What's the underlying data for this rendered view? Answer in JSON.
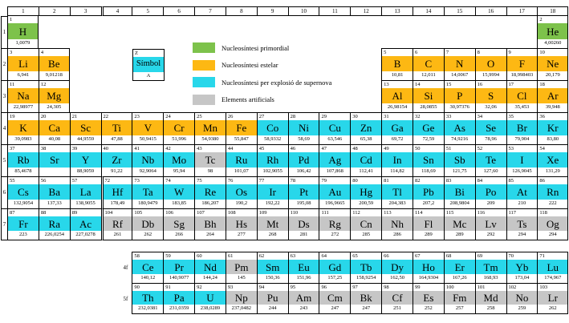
{
  "colors": {
    "primordial": "#7DC24B",
    "stellar": "#FDB813",
    "supernova": "#28D7EA",
    "artificial": "#C6C6C6"
  },
  "legend": {
    "items": [
      {
        "key": "primordial",
        "label": "Nucleosíntesi primordial"
      },
      {
        "key": "stellar",
        "label": "Nucleosíntesi estelar"
      },
      {
        "key": "supernova",
        "label": "Nucleosíntesi per explosió de supernova"
      },
      {
        "key": "artificial",
        "label": "Elements artificials"
      }
    ]
  },
  "symbol_key": {
    "z": "Z",
    "symbol": "Símbol",
    "a": "A"
  },
  "group_headers": [
    "1",
    "2",
    "3",
    "4",
    "5",
    "6",
    "7",
    "8",
    "9",
    "10",
    "11",
    "12",
    "13",
    "14",
    "15",
    "16",
    "17",
    "18"
  ],
  "period_labels": [
    "1",
    "2",
    "3",
    "4",
    "5",
    "6",
    "7"
  ],
  "fblock_labels": [
    "4f",
    "5f"
  ],
  "elements": [
    {
      "z": "1",
      "sym": "H",
      "mass": "1,0079",
      "group": 1,
      "period": 1,
      "cat": "primordial"
    },
    {
      "z": "2",
      "sym": "He",
      "mass": "4,00260",
      "group": 18,
      "period": 1,
      "cat": "primordial"
    },
    {
      "z": "3",
      "sym": "Li",
      "mass": "6,941",
      "group": 1,
      "period": 2,
      "cat": "stellar"
    },
    {
      "z": "4",
      "sym": "Be",
      "mass": "9,01218",
      "group": 2,
      "period": 2,
      "cat": "stellar"
    },
    {
      "z": "5",
      "sym": "B",
      "mass": "10,81",
      "group": 13,
      "period": 2,
      "cat": "stellar"
    },
    {
      "z": "6",
      "sym": "C",
      "mass": "12,011",
      "group": 14,
      "period": 2,
      "cat": "stellar"
    },
    {
      "z": "7",
      "sym": "N",
      "mass": "14,0067",
      "group": 15,
      "period": 2,
      "cat": "stellar"
    },
    {
      "z": "8",
      "sym": "O",
      "mass": "15,9994",
      "group": 16,
      "period": 2,
      "cat": "stellar"
    },
    {
      "z": "9",
      "sym": "F",
      "mass": "18,998403",
      "group": 17,
      "period": 2,
      "cat": "stellar"
    },
    {
      "z": "10",
      "sym": "Ne",
      "mass": "20,179",
      "group": 18,
      "period": 2,
      "cat": "stellar"
    },
    {
      "z": "11",
      "sym": "Na",
      "mass": "22,98977",
      "group": 1,
      "period": 3,
      "cat": "stellar"
    },
    {
      "z": "12",
      "sym": "Mg",
      "mass": "24,305",
      "group": 2,
      "period": 3,
      "cat": "stellar"
    },
    {
      "z": "13",
      "sym": "Al",
      "mass": "26,98154",
      "group": 13,
      "period": 3,
      "cat": "stellar"
    },
    {
      "z": "14",
      "sym": "Si",
      "mass": "28,0855",
      "group": 14,
      "period": 3,
      "cat": "stellar"
    },
    {
      "z": "15",
      "sym": "P",
      "mass": "30,97376",
      "group": 15,
      "period": 3,
      "cat": "stellar"
    },
    {
      "z": "16",
      "sym": "S",
      "mass": "32,06",
      "group": 16,
      "period": 3,
      "cat": "stellar"
    },
    {
      "z": "17",
      "sym": "Cl",
      "mass": "35,453",
      "group": 17,
      "period": 3,
      "cat": "stellar"
    },
    {
      "z": "18",
      "sym": "Ar",
      "mass": "39,948",
      "group": 18,
      "period": 3,
      "cat": "stellar"
    },
    {
      "z": "19",
      "sym": "K",
      "mass": "39,0983",
      "group": 1,
      "period": 4,
      "cat": "stellar"
    },
    {
      "z": "20",
      "sym": "Ca",
      "mass": "40,08",
      "group": 2,
      "period": 4,
      "cat": "stellar"
    },
    {
      "z": "21",
      "sym": "Sc",
      "mass": "44,9559",
      "group": 3,
      "period": 4,
      "cat": "stellar"
    },
    {
      "z": "22",
      "sym": "Ti",
      "mass": "47,88",
      "group": 4,
      "period": 4,
      "cat": "stellar"
    },
    {
      "z": "23",
      "sym": "V",
      "mass": "50,9415",
      "group": 5,
      "period": 4,
      "cat": "stellar"
    },
    {
      "z": "24",
      "sym": "Cr",
      "mass": "51,996",
      "group": 6,
      "period": 4,
      "cat": "stellar"
    },
    {
      "z": "25",
      "sym": "Mn",
      "mass": "54,9380",
      "group": 7,
      "period": 4,
      "cat": "stellar"
    },
    {
      "z": "26",
      "sym": "Fe",
      "mass": "55,847",
      "group": 8,
      "period": 4,
      "cat": "stellar"
    },
    {
      "z": "27",
      "sym": "Co",
      "mass": "58,9332",
      "group": 9,
      "period": 4,
      "cat": "supernova"
    },
    {
      "z": "28",
      "sym": "Ni",
      "mass": "58,69",
      "group": 10,
      "period": 4,
      "cat": "supernova"
    },
    {
      "z": "29",
      "sym": "Cu",
      "mass": "63,546",
      "group": 11,
      "period": 4,
      "cat": "supernova"
    },
    {
      "z": "30",
      "sym": "Zn",
      "mass": "65,38",
      "group": 12,
      "period": 4,
      "cat": "supernova"
    },
    {
      "z": "31",
      "sym": "Ga",
      "mass": "69,72",
      "group": 13,
      "period": 4,
      "cat": "supernova"
    },
    {
      "z": "32",
      "sym": "Ge",
      "mass": "72,59",
      "group": 14,
      "period": 4,
      "cat": "supernova"
    },
    {
      "z": "33",
      "sym": "As",
      "mass": "74,9216",
      "group": 15,
      "period": 4,
      "cat": "supernova"
    },
    {
      "z": "34",
      "sym": "Se",
      "mass": "78,96",
      "group": 16,
      "period": 4,
      "cat": "supernova"
    },
    {
      "z": "35",
      "sym": "Br",
      "mass": "79,904",
      "group": 17,
      "period": 4,
      "cat": "supernova"
    },
    {
      "z": "36",
      "sym": "Kr",
      "mass": "83,80",
      "group": 18,
      "period": 4,
      "cat": "supernova"
    },
    {
      "z": "37",
      "sym": "Rb",
      "mass": "85,4678",
      "group": 1,
      "period": 5,
      "cat": "supernova"
    },
    {
      "z": "38",
      "sym": "Sr",
      "mass": "",
      "group": 2,
      "period": 5,
      "cat": "supernova"
    },
    {
      "z": "39",
      "sym": "Y",
      "mass": "88,9059",
      "group": 3,
      "period": 5,
      "cat": "supernova"
    },
    {
      "z": "40",
      "sym": "Zr",
      "mass": "91,22",
      "group": 4,
      "period": 5,
      "cat": "supernova"
    },
    {
      "z": "41",
      "sym": "Nb",
      "mass": "92,9064",
      "group": 5,
      "period": 5,
      "cat": "supernova"
    },
    {
      "z": "42",
      "sym": "Mo",
      "mass": "95,94",
      "group": 6,
      "period": 5,
      "cat": "supernova"
    },
    {
      "z": "43",
      "sym": "Tc",
      "mass": "98",
      "group": 7,
      "period": 5,
      "cat": "artificial"
    },
    {
      "z": "44",
      "sym": "Ru",
      "mass": "101,07",
      "group": 8,
      "period": 5,
      "cat": "supernova"
    },
    {
      "z": "45",
      "sym": "Rh",
      "mass": "102,9055",
      "group": 9,
      "period": 5,
      "cat": "supernova"
    },
    {
      "z": "46",
      "sym": "Pd",
      "mass": "106,42",
      "group": 10,
      "period": 5,
      "cat": "supernova"
    },
    {
      "z": "47",
      "sym": "Ag",
      "mass": "107,868",
      "group": 11,
      "period": 5,
      "cat": "supernova"
    },
    {
      "z": "48",
      "sym": "Cd",
      "mass": "112,41",
      "group": 12,
      "period": 5,
      "cat": "supernova"
    },
    {
      "z": "49",
      "sym": "In",
      "mass": "114,82",
      "group": 13,
      "period": 5,
      "cat": "supernova"
    },
    {
      "z": "50",
      "sym": "Sn",
      "mass": "118,69",
      "group": 14,
      "period": 5,
      "cat": "supernova"
    },
    {
      "z": "51",
      "sym": "Sb",
      "mass": "121,75",
      "group": 15,
      "period": 5,
      "cat": "supernova"
    },
    {
      "z": "52",
      "sym": "Te",
      "mass": "127,60",
      "group": 16,
      "period": 5,
      "cat": "supernova"
    },
    {
      "z": "53",
      "sym": "I",
      "mass": "126,9045",
      "group": 17,
      "period": 5,
      "cat": "supernova"
    },
    {
      "z": "54",
      "sym": "Xe",
      "mass": "131,29",
      "group": 18,
      "period": 5,
      "cat": "supernova"
    },
    {
      "z": "55",
      "sym": "Cs",
      "mass": "132,9054",
      "group": 1,
      "period": 6,
      "cat": "supernova"
    },
    {
      "z": "56",
      "sym": "Ba",
      "mass": "137,33",
      "group": 2,
      "period": 6,
      "cat": "supernova"
    },
    {
      "z": "57",
      "sym": "La",
      "mass": "138,9055",
      "group": 3,
      "period": 6,
      "cat": "supernova"
    },
    {
      "z": "72",
      "sym": "Hf",
      "mass": "178,49",
      "group": 4,
      "period": 6,
      "cat": "supernova"
    },
    {
      "z": "73",
      "sym": "Ta",
      "mass": "180,9479",
      "group": 5,
      "period": 6,
      "cat": "supernova"
    },
    {
      "z": "74",
      "sym": "W",
      "mass": "183,85",
      "group": 6,
      "period": 6,
      "cat": "supernova"
    },
    {
      "z": "75",
      "sym": "Re",
      "mass": "186,207",
      "group": 7,
      "period": 6,
      "cat": "supernova"
    },
    {
      "z": "76",
      "sym": "Os",
      "mass": "190,2",
      "group": 8,
      "period": 6,
      "cat": "supernova"
    },
    {
      "z": "77",
      "sym": "Ir",
      "mass": "192,22",
      "group": 9,
      "period": 6,
      "cat": "supernova"
    },
    {
      "z": "78",
      "sym": "Pt",
      "mass": "195,08",
      "group": 10,
      "period": 6,
      "cat": "supernova"
    },
    {
      "z": "79",
      "sym": "Au",
      "mass": "196,9665",
      "group": 11,
      "period": 6,
      "cat": "supernova"
    },
    {
      "z": "80",
      "sym": "Hg",
      "mass": "200,59",
      "group": 12,
      "period": 6,
      "cat": "supernova"
    },
    {
      "z": "81",
      "sym": "Tl",
      "mass": "204,383",
      "group": 13,
      "period": 6,
      "cat": "supernova"
    },
    {
      "z": "82",
      "sym": "Pb",
      "mass": "207,2",
      "group": 14,
      "period": 6,
      "cat": "supernova"
    },
    {
      "z": "83",
      "sym": "Bi",
      "mass": "208,9804",
      "group": 15,
      "period": 6,
      "cat": "supernova"
    },
    {
      "z": "84",
      "sym": "Po",
      "mass": "209",
      "group": 16,
      "period": 6,
      "cat": "supernova"
    },
    {
      "z": "85",
      "sym": "At",
      "mass": "210",
      "group": 17,
      "period": 6,
      "cat": "supernova"
    },
    {
      "z": "86",
      "sym": "Rn",
      "mass": "222",
      "group": 18,
      "period": 6,
      "cat": "supernova"
    },
    {
      "z": "87",
      "sym": "Fr",
      "mass": "223",
      "group": 1,
      "period": 7,
      "cat": "supernova"
    },
    {
      "z": "88",
      "sym": "Ra",
      "mass": "226,0254",
      "group": 2,
      "period": 7,
      "cat": "supernova"
    },
    {
      "z": "89",
      "sym": "Ac",
      "mass": "227,0278",
      "group": 3,
      "period": 7,
      "cat": "supernova"
    },
    {
      "z": "104",
      "sym": "Rf",
      "mass": "261",
      "group": 4,
      "period": 7,
      "cat": "artificial"
    },
    {
      "z": "105",
      "sym": "Db",
      "mass": "262",
      "group": 5,
      "period": 7,
      "cat": "artificial"
    },
    {
      "z": "106",
      "sym": "Sg",
      "mass": "266",
      "group": 6,
      "period": 7,
      "cat": "artificial"
    },
    {
      "z": "107",
      "sym": "Bh",
      "mass": "264",
      "group": 7,
      "period": 7,
      "cat": "artificial"
    },
    {
      "z": "108",
      "sym": "Hs",
      "mass": "277",
      "group": 8,
      "period": 7,
      "cat": "artificial"
    },
    {
      "z": "109",
      "sym": "Mt",
      "mass": "268",
      "group": 9,
      "period": 7,
      "cat": "artificial"
    },
    {
      "z": "110",
      "sym": "Ds",
      "mass": "281",
      "group": 10,
      "period": 7,
      "cat": "artificial"
    },
    {
      "z": "111",
      "sym": "Rg",
      "mass": "272",
      "group": 11,
      "period": 7,
      "cat": "artificial"
    },
    {
      "z": "112",
      "sym": "Cn",
      "mass": "285",
      "group": 12,
      "period": 7,
      "cat": "artificial"
    },
    {
      "z": "113",
      "sym": "Nh",
      "mass": "286",
      "group": 13,
      "period": 7,
      "cat": "artificial"
    },
    {
      "z": "114",
      "sym": "Fl",
      "mass": "289",
      "group": 14,
      "period": 7,
      "cat": "artificial"
    },
    {
      "z": "115",
      "sym": "Mc",
      "mass": "289",
      "group": 15,
      "period": 7,
      "cat": "artificial"
    },
    {
      "z": "116",
      "sym": "Lv",
      "mass": "292",
      "group": 16,
      "period": 7,
      "cat": "artificial"
    },
    {
      "z": "117",
      "sym": "Ts",
      "mass": "294",
      "group": 17,
      "period": 7,
      "cat": "artificial"
    },
    {
      "z": "118",
      "sym": "Og",
      "mass": "294",
      "group": 18,
      "period": 7,
      "cat": "artificial"
    }
  ],
  "lanthanides": [
    {
      "z": "58",
      "sym": "Ce",
      "mass": "140,12",
      "cat": "supernova"
    },
    {
      "z": "59",
      "sym": "Pr",
      "mass": "140,9077",
      "cat": "supernova"
    },
    {
      "z": "60",
      "sym": "Nd",
      "mass": "144,24",
      "cat": "supernova"
    },
    {
      "z": "61",
      "sym": "Pm",
      "mass": "145",
      "cat": "artificial"
    },
    {
      "z": "62",
      "sym": "Sm",
      "mass": "150,36",
      "cat": "supernova"
    },
    {
      "z": "63",
      "sym": "Eu",
      "mass": "151,96",
      "cat": "supernova"
    },
    {
      "z": "64",
      "sym": "Gd",
      "mass": "157,25",
      "cat": "supernova"
    },
    {
      "z": "65",
      "sym": "Tb",
      "mass": "158,9254",
      "cat": "supernova"
    },
    {
      "z": "66",
      "sym": "Dy",
      "mass": "162,50",
      "cat": "supernova"
    },
    {
      "z": "67",
      "sym": "Ho",
      "mass": "164,9304",
      "cat": "supernova"
    },
    {
      "z": "68",
      "sym": "Er",
      "mass": "167,26",
      "cat": "supernova"
    },
    {
      "z": "69",
      "sym": "Tm",
      "mass": "168,93",
      "cat": "supernova"
    },
    {
      "z": "70",
      "sym": "Yb",
      "mass": "173,04",
      "cat": "supernova"
    },
    {
      "z": "71",
      "sym": "Lu",
      "mass": "174,967",
      "cat": "supernova"
    }
  ],
  "actinides": [
    {
      "z": "90",
      "sym": "Th",
      "mass": "232,0381",
      "cat": "supernova"
    },
    {
      "z": "91",
      "sym": "Pa",
      "mass": "231,0359",
      "cat": "supernova"
    },
    {
      "z": "92",
      "sym": "U",
      "mass": "238,0289",
      "cat": "supernova"
    },
    {
      "z": "93",
      "sym": "Np",
      "mass": "237,0482",
      "cat": "artificial"
    },
    {
      "z": "94",
      "sym": "Pu",
      "mass": "244",
      "cat": "artificial"
    },
    {
      "z": "95",
      "sym": "Am",
      "mass": "243",
      "cat": "artificial"
    },
    {
      "z": "96",
      "sym": "Cm",
      "mass": "247",
      "cat": "artificial"
    },
    {
      "z": "97",
      "sym": "Bk",
      "mass": "247",
      "cat": "artificial"
    },
    {
      "z": "98",
      "sym": "Cf",
      "mass": "251",
      "cat": "artificial"
    },
    {
      "z": "99",
      "sym": "Es",
      "mass": "252",
      "cat": "artificial"
    },
    {
      "z": "100",
      "sym": "Fm",
      "mass": "257",
      "cat": "artificial"
    },
    {
      "z": "101",
      "sym": "Md",
      "mass": "258",
      "cat": "artificial"
    },
    {
      "z": "102",
      "sym": "No",
      "mass": "259",
      "cat": "artificial"
    },
    {
      "z": "103",
      "sym": "Lr",
      "mass": "262",
      "cat": "artificial"
    }
  ]
}
